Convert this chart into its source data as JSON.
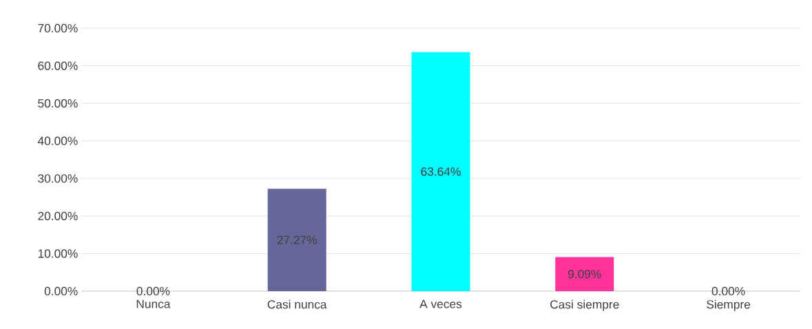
{
  "chart_data": {
    "type": "bar",
    "categories": [
      "Nunca",
      "Casi nunca",
      "A veces",
      "Casi siempre",
      "Siempre"
    ],
    "values": [
      0,
      27.27,
      63.64,
      9.09,
      0
    ],
    "colors": [
      "#4472c4",
      "#666699",
      "#00ffff",
      "#ff3399",
      "#4472c4"
    ],
    "value_labels": [
      "0.00%",
      "27.27%",
      "63.64%",
      "9.09%",
      "0.00%"
    ],
    "ylim": [
      0,
      70
    ],
    "yticks": [
      {
        "value": 0,
        "label": "0.00%"
      },
      {
        "value": 10,
        "label": "10.00%"
      },
      {
        "value": 20,
        "label": "20.00%"
      },
      {
        "value": 30,
        "label": "30.00%"
      },
      {
        "value": 40,
        "label": "40.00%"
      },
      {
        "value": 50,
        "label": "50.00%"
      },
      {
        "value": 60,
        "label": "60.00%"
      },
      {
        "value": 70,
        "label": "70.00%"
      }
    ],
    "grid": "y"
  }
}
